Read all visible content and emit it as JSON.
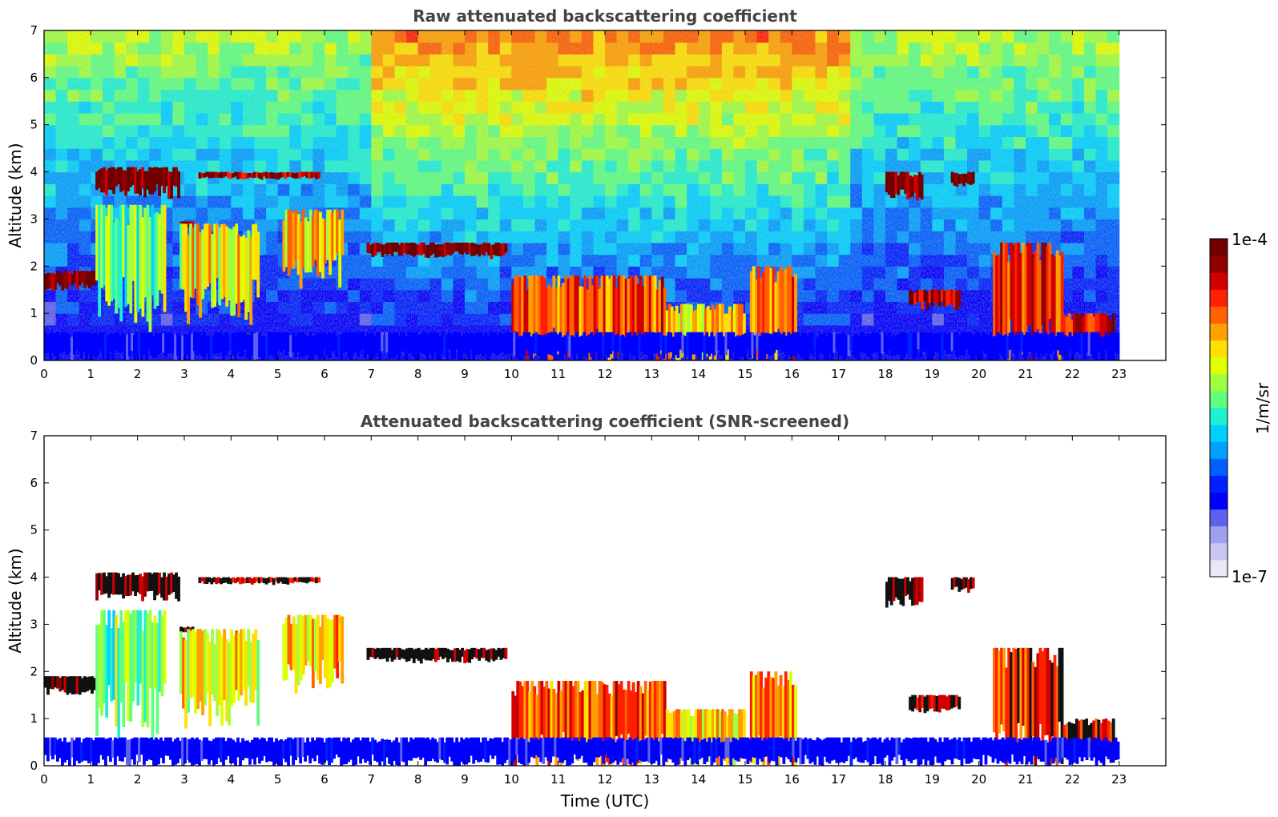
{
  "chart_data": [
    {
      "type": "heatmap",
      "title": "Raw attenuated backscattering coefficient",
      "xlabel": "",
      "ylabel": "Altitude (km)",
      "xlim": [
        0,
        24
      ],
      "ylim": [
        0,
        7
      ],
      "x_ticks": [
        "0",
        "1",
        "2",
        "3",
        "4",
        "5",
        "6",
        "7",
        "8",
        "9",
        "10",
        "11",
        "12",
        "13",
        "14",
        "15",
        "16",
        "17",
        "18",
        "19",
        "20",
        "21",
        "22",
        "23"
      ],
      "y_ticks": [
        "0",
        "1",
        "2",
        "3",
        "4",
        "5",
        "6",
        "7"
      ],
      "data_time_range": [
        0,
        23
      ],
      "colorscale": "jet",
      "features": [
        {
          "kind": "cloud_layer",
          "t": [
            0.0,
            1.1
          ],
          "alt": [
            1.5,
            1.9
          ],
          "level": 1.0
        },
        {
          "kind": "cloud_layer",
          "t": [
            1.1,
            2.9
          ],
          "alt": [
            3.5,
            4.1
          ],
          "level": 1.0
        },
        {
          "kind": "cloud_layer",
          "t": [
            3.3,
            5.9
          ],
          "alt": [
            3.85,
            4.0
          ],
          "level": 0.95
        },
        {
          "kind": "cloud_layer",
          "t": [
            2.9,
            3.2
          ],
          "alt": [
            2.8,
            2.95
          ],
          "level": 1.0
        },
        {
          "kind": "aerosol_plume",
          "t": [
            1.1,
            2.6
          ],
          "alt": [
            0.8,
            3.3
          ],
          "level": 0.55
        },
        {
          "kind": "aerosol_plume",
          "t": [
            2.9,
            4.6
          ],
          "alt": [
            1.0,
            2.9
          ],
          "level": 0.65
        },
        {
          "kind": "aerosol_plume",
          "t": [
            5.1,
            6.4
          ],
          "alt": [
            1.7,
            3.2
          ],
          "level": 0.7
        },
        {
          "kind": "cloud_layer",
          "t": [
            6.9,
            9.9
          ],
          "alt": [
            2.2,
            2.5
          ],
          "level": 1.0
        },
        {
          "kind": "cloud_layer",
          "t": [
            10.0,
            13.3
          ],
          "alt": [
            0.0,
            1.8
          ],
          "level": 0.8
        },
        {
          "kind": "cloud_layer",
          "t": [
            13.3,
            15.0
          ],
          "alt": [
            0.0,
            1.2
          ],
          "level": 0.7
        },
        {
          "kind": "cloud_layer",
          "t": [
            15.1,
            16.1
          ],
          "alt": [
            0.0,
            2.0
          ],
          "level": 0.75
        },
        {
          "kind": "cloud_layer",
          "t": [
            18.0,
            18.8
          ],
          "alt": [
            3.4,
            4.0
          ],
          "level": 1.0
        },
        {
          "kind": "cloud_layer",
          "t": [
            19.4,
            19.9
          ],
          "alt": [
            3.7,
            4.0
          ],
          "level": 1.0
        },
        {
          "kind": "cloud_layer",
          "t": [
            18.5,
            19.6
          ],
          "alt": [
            1.1,
            1.5
          ],
          "level": 0.95
        },
        {
          "kind": "cloud_layer",
          "t": [
            20.3,
            21.8
          ],
          "alt": [
            0.0,
            2.5
          ],
          "level": 0.85
        },
        {
          "kind": "cloud_layer",
          "t": [
            21.8,
            22.9
          ],
          "alt": [
            0.2,
            1.0
          ],
          "level": 0.9
        },
        {
          "kind": "boundary_layer",
          "t": [
            0.0,
            23.0
          ],
          "alt": [
            0.0,
            0.6
          ],
          "level": 0.2
        }
      ]
    },
    {
      "type": "heatmap",
      "title": "Attenuated backscattering coefficient (SNR-screened)",
      "xlabel": "Time (UTC)",
      "ylabel": "Altitude (km)",
      "xlim": [
        0,
        24
      ],
      "ylim": [
        0,
        7
      ],
      "x_ticks": [
        "0",
        "1",
        "2",
        "3",
        "4",
        "5",
        "6",
        "7",
        "8",
        "9",
        "10",
        "11",
        "12",
        "13",
        "14",
        "15",
        "16",
        "17",
        "18",
        "19",
        "20",
        "21",
        "22",
        "23"
      ],
      "y_ticks": [
        "0",
        "1",
        "2",
        "3",
        "4",
        "5",
        "6",
        "7"
      ],
      "data_time_range": [
        0,
        23
      ],
      "colorscale": "jet",
      "screened": true
    }
  ],
  "colorbar": {
    "label": "1/m/sr",
    "max_label": "1e-4",
    "min_label": "1e-7",
    "colors": [
      "#e8e8f8",
      "#c8c8f0",
      "#a0a0f0",
      "#6060f0",
      "#0000ff",
      "#0020ff",
      "#0060ff",
      "#00a0ff",
      "#00d0ff",
      "#20f0d0",
      "#60ff80",
      "#a0ff40",
      "#e0ff00",
      "#ffe000",
      "#ffa000",
      "#ff6000",
      "#ff2000",
      "#d00000",
      "#900000",
      "#700000"
    ]
  }
}
